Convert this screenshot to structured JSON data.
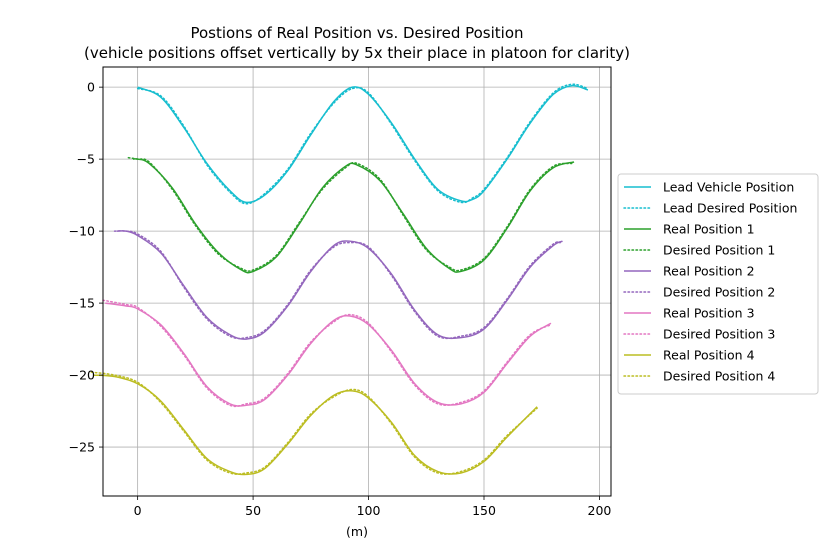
{
  "chart_data": {
    "type": "line",
    "title": "Postions of Real Position vs. Desired Position",
    "subtitle": "(vehicle positions offset vertically by 5x their place in platoon for clarity)",
    "xlabel": "(m)",
    "ylabel": "",
    "xlim": [
      -15,
      205
    ],
    "ylim": [
      -28.4,
      1.4
    ],
    "xticks": [
      0,
      50,
      100,
      150,
      200
    ],
    "yticks": [
      0,
      -5,
      -10,
      -15,
      -20,
      -25
    ],
    "xtick_labels": [
      "0",
      "50",
      "100",
      "150",
      "200"
    ],
    "ytick_labels": [
      "0",
      "−5",
      "−10",
      "−15",
      "−20",
      "−25"
    ],
    "grid": true,
    "legend_position": "right",
    "series": [
      {
        "name": "Lead Vehicle Position",
        "color": "#17becf",
        "style": "solid",
        "x": [
          0,
          10,
          20,
          30,
          40,
          47,
          55,
          65,
          75,
          85,
          93,
          100,
          110,
          120,
          130,
          140,
          145,
          150,
          160,
          170,
          180,
          188,
          195
        ],
        "y": [
          0,
          -0.7,
          -2.8,
          -5.3,
          -7.2,
          -8.0,
          -7.5,
          -5.8,
          -3.3,
          -1.0,
          0,
          -0.5,
          -2.5,
          -5.0,
          -7.1,
          -7.9,
          -7.8,
          -7.2,
          -5.0,
          -2.5,
          -0.5,
          0.1,
          -0.2
        ]
      },
      {
        "name": "Lead Desired Position",
        "color": "#17becf",
        "style": "dotted",
        "x": [
          0,
          10,
          20,
          30,
          40,
          47,
          55,
          65,
          75,
          85,
          93,
          100,
          110,
          120,
          130,
          140,
          145,
          150,
          160,
          170,
          180,
          188,
          195
        ],
        "y": [
          -0.1,
          -0.6,
          -2.7,
          -5.4,
          -7.3,
          -8.1,
          -7.4,
          -5.7,
          -3.2,
          -1.1,
          -0.1,
          -0.4,
          -2.6,
          -5.1,
          -7.2,
          -8.0,
          -7.7,
          -7.1,
          -4.9,
          -2.4,
          -0.4,
          0.2,
          -0.1
        ]
      },
      {
        "name": "Real Position 1",
        "color": "#2ca02c",
        "style": "solid",
        "x": [
          -2,
          0,
          5,
          15,
          25,
          35,
          45,
          50,
          60,
          70,
          80,
          90,
          95,
          105,
          115,
          125,
          135,
          140,
          150,
          160,
          170,
          180,
          189
        ],
        "y": [
          -5.0,
          -5.0,
          -5.3,
          -7.0,
          -9.5,
          -11.5,
          -12.7,
          -12.8,
          -11.8,
          -9.5,
          -7.0,
          -5.5,
          -5.4,
          -6.5,
          -8.8,
          -11.2,
          -12.6,
          -12.8,
          -12.0,
          -9.8,
          -7.2,
          -5.6,
          -5.2
        ]
      },
      {
        "name": "Desired Position 1",
        "color": "#2ca02c",
        "style": "dotted",
        "x": [
          -4,
          0,
          5,
          15,
          25,
          35,
          45,
          50,
          60,
          70,
          80,
          90,
          95,
          105,
          115,
          125,
          135,
          140,
          150,
          160,
          170,
          180,
          188
        ],
        "y": [
          -4.9,
          -5.0,
          -5.2,
          -7.1,
          -9.6,
          -11.6,
          -12.6,
          -12.7,
          -11.7,
          -9.4,
          -7.1,
          -5.6,
          -5.3,
          -6.4,
          -8.9,
          -11.3,
          -12.5,
          -12.7,
          -11.9,
          -9.7,
          -7.1,
          -5.5,
          -5.3
        ]
      },
      {
        "name": "Real Position 2",
        "color": "#9467bd",
        "style": "solid",
        "x": [
          -9,
          -5,
          0,
          10,
          20,
          30,
          40,
          47,
          55,
          65,
          75,
          85,
          92,
          100,
          110,
          120,
          130,
          140,
          150,
          160,
          170,
          180,
          184
        ],
        "y": [
          -10.0,
          -10.0,
          -10.3,
          -11.5,
          -13.8,
          -16.0,
          -17.2,
          -17.5,
          -17.0,
          -15.2,
          -12.8,
          -11.0,
          -10.7,
          -11.2,
          -13.0,
          -15.5,
          -17.2,
          -17.4,
          -16.8,
          -14.8,
          -12.5,
          -11.0,
          -10.7
        ]
      },
      {
        "name": "Desired Position 2",
        "color": "#9467bd",
        "style": "dotted",
        "x": [
          -10,
          -5,
          0,
          10,
          20,
          30,
          40,
          47,
          55,
          65,
          75,
          85,
          92,
          100,
          110,
          120,
          130,
          140,
          150,
          160,
          170,
          180,
          183
        ],
        "y": [
          -10.0,
          -10.0,
          -10.2,
          -11.4,
          -13.9,
          -16.1,
          -17.3,
          -17.4,
          -16.9,
          -15.1,
          -12.7,
          -11.1,
          -10.8,
          -11.1,
          -13.1,
          -15.6,
          -17.3,
          -17.3,
          -16.7,
          -14.7,
          -12.4,
          -10.9,
          -10.8
        ]
      },
      {
        "name": "Real Position 3",
        "color": "#e377c2",
        "style": "solid",
        "x": [
          -14,
          -5,
          0,
          10,
          20,
          30,
          40,
          47,
          55,
          65,
          75,
          85,
          92,
          100,
          110,
          120,
          130,
          140,
          150,
          160,
          170,
          179
        ],
        "y": [
          -15.0,
          -15.2,
          -15.4,
          -16.5,
          -18.5,
          -20.8,
          -22.0,
          -22.1,
          -21.7,
          -20.0,
          -17.8,
          -16.2,
          -15.9,
          -16.5,
          -18.3,
          -20.6,
          -21.9,
          -22.0,
          -21.2,
          -19.2,
          -17.3,
          -16.4
        ]
      },
      {
        "name": "Desired Position 3",
        "color": "#e377c2",
        "style": "dotted",
        "x": [
          -15,
          -5,
          0,
          10,
          20,
          30,
          40,
          47,
          55,
          65,
          75,
          85,
          92,
          100,
          110,
          120,
          130,
          140,
          150,
          160,
          170,
          179
        ],
        "y": [
          -14.8,
          -15.1,
          -15.3,
          -16.6,
          -18.6,
          -20.9,
          -22.1,
          -22.0,
          -21.6,
          -19.9,
          -17.7,
          -16.3,
          -15.8,
          -16.4,
          -18.4,
          -20.7,
          -22.0,
          -21.9,
          -21.1,
          -19.1,
          -17.2,
          -16.5
        ]
      },
      {
        "name": "Real Position 4",
        "color": "#bcbd22",
        "style": "solid",
        "x": [
          -19,
          -10,
          0,
          10,
          20,
          30,
          40,
          47,
          55,
          65,
          75,
          85,
          93,
          100,
          110,
          120,
          130,
          140,
          150,
          160,
          173
        ],
        "y": [
          -20.0,
          -20.1,
          -20.6,
          -21.8,
          -23.8,
          -25.8,
          -26.7,
          -26.9,
          -26.5,
          -24.8,
          -22.8,
          -21.4,
          -21.1,
          -21.6,
          -23.3,
          -25.6,
          -26.7,
          -26.8,
          -26.0,
          -24.3,
          -22.2
        ]
      },
      {
        "name": "Desired Position 4",
        "color": "#bcbd22",
        "style": "dotted",
        "x": [
          -20,
          -10,
          0,
          10,
          20,
          30,
          40,
          47,
          55,
          65,
          75,
          85,
          93,
          100,
          110,
          120,
          130,
          140,
          150,
          160,
          173
        ],
        "y": [
          -19.8,
          -20.0,
          -20.5,
          -21.9,
          -23.9,
          -25.9,
          -26.8,
          -26.8,
          -26.4,
          -24.7,
          -22.7,
          -21.5,
          -21.0,
          -21.5,
          -23.4,
          -25.7,
          -26.8,
          -26.7,
          -25.9,
          -24.2,
          -22.3
        ]
      }
    ]
  }
}
